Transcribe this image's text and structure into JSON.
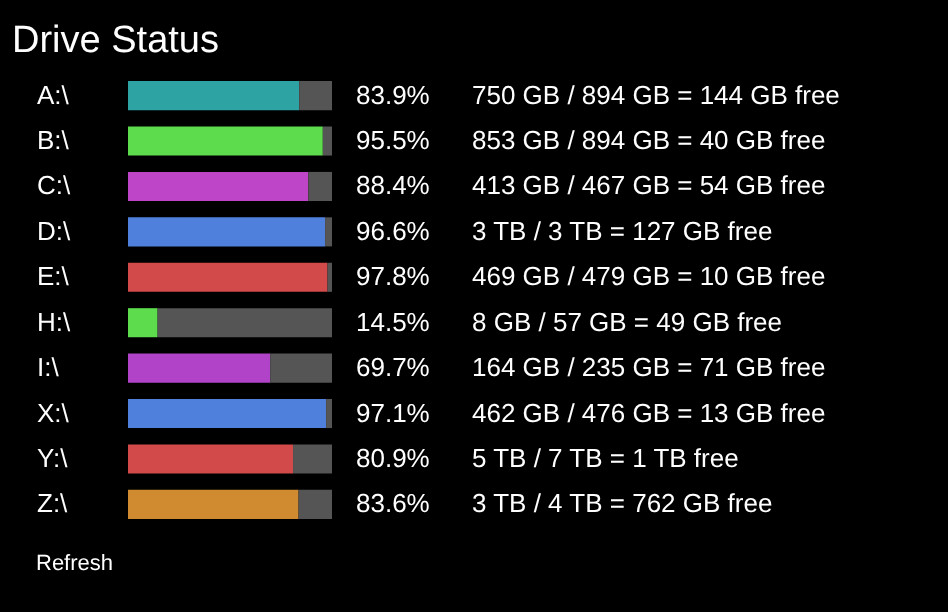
{
  "chart_data": {
    "type": "bar",
    "orientation": "horizontal",
    "stacked": true,
    "title": "Drive Status",
    "categories": [
      "A:\\",
      "B:\\",
      "C:\\",
      "D:\\",
      "E:\\",
      "H:\\",
      "I:\\",
      "X:\\",
      "Y:\\",
      "Z:\\"
    ],
    "series": [
      {
        "values": [
          83.9,
          95.5,
          88.4,
          96.6,
          97.8,
          14.5,
          69.7,
          97.1,
          80.9,
          83.6
        ],
        "colors": [
          "#2ea3a3",
          "#5ddc4e",
          "#be44c8",
          "#4f80dc",
          "#d24a4a",
          "#5ddc4e",
          "#b043c8",
          "#4f80dc",
          "#d24a4a",
          "#d08a30"
        ],
        "value_labels": [
          "83.9%",
          "95.5%",
          "88.4%",
          "96.6%",
          "97.8%",
          "14.5%",
          "69.7%",
          "97.1%",
          "80.9%",
          "83.6%"
        ]
      },
      {
        "color": "#555555",
        "values": [
          16.1,
          4.5,
          11.6,
          3.4,
          2.2,
          85.5,
          30.3,
          2.9,
          19.1,
          16.4
        ]
      }
    ],
    "xlim": [
      0,
      100
    ],
    "tick_labels": "y",
    "grid": false,
    "legend": false,
    "annotations": [
      "750 GB / 894 GB = 144 GB free",
      "853 GB / 894 GB = 40 GB free",
      "413 GB / 467 GB = 54 GB free",
      "3 TB / 3 TB = 127 GB free",
      "469 GB / 479 GB = 10 GB free",
      "8 GB / 57 GB = 49 GB free",
      "164 GB / 235 GB = 71 GB free",
      "462 GB / 476 GB = 13 GB free",
      "5 TB / 7 TB = 1 TB free",
      "3 TB / 4 TB = 762 GB free",
      "Refresh"
    ]
  }
}
